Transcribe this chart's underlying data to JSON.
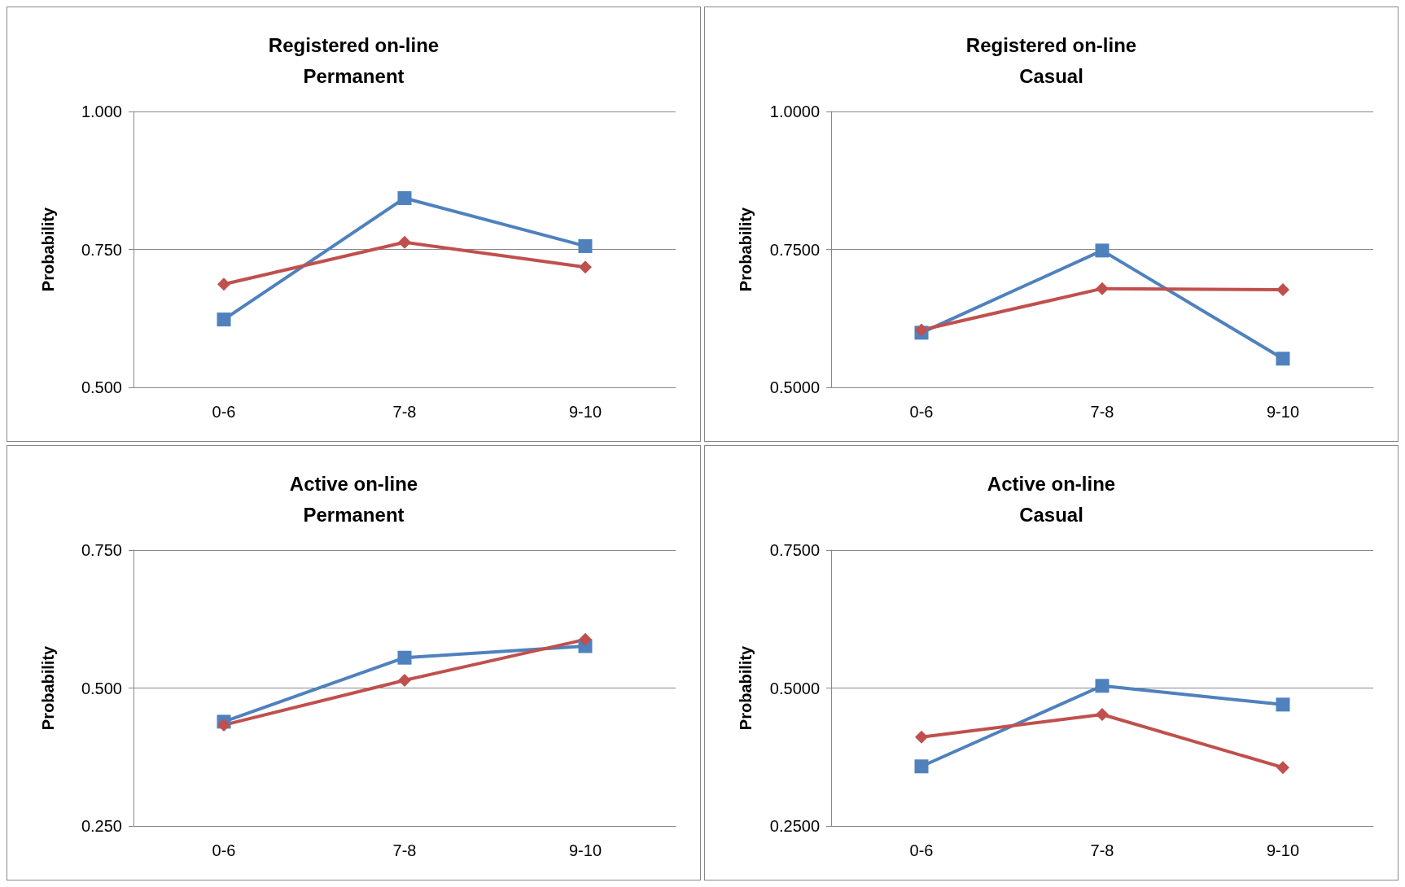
{
  "chart_data": [
    {
      "type": "line",
      "title": "Registered on-line\nPermanent",
      "ylabel": "Probability",
      "categories": [
        "0-6",
        "7-8",
        "9-10"
      ],
      "ylim": [
        0.5,
        1.0
      ],
      "yticks": [
        {
          "value": 0.5,
          "label": "0.500"
        },
        {
          "value": 0.75,
          "label": "0.750"
        },
        {
          "value": 1.0,
          "label": "1.000"
        }
      ],
      "grid": "y",
      "series": [
        {
          "color": "#4f81bd",
          "marker": "square",
          "values": [
            0.623,
            0.843,
            0.756
          ]
        },
        {
          "color": "#c0504d",
          "marker": "diamond",
          "values": [
            0.687,
            0.763,
            0.718
          ]
        }
      ]
    },
    {
      "type": "line",
      "title": "Registered on-line\nCasual",
      "ylabel": "Probability",
      "categories": [
        "0-6",
        "7-8",
        "9-10"
      ],
      "ylim": [
        0.5,
        1.0
      ],
      "yticks": [
        {
          "value": 0.5,
          "label": "0.5000"
        },
        {
          "value": 0.75,
          "label": "0.7500"
        },
        {
          "value": 1.0,
          "label": "1.0000"
        }
      ],
      "grid": "y",
      "series": [
        {
          "color": "#4f81bd",
          "marker": "square",
          "values": [
            0.599,
            0.748,
            0.552
          ]
        },
        {
          "color": "#c0504d",
          "marker": "diamond",
          "values": [
            0.604,
            0.679,
            0.677
          ]
        }
      ]
    },
    {
      "type": "line",
      "title": "Active on-line\nPermanent",
      "ylabel": "Probability",
      "categories": [
        "0-6",
        "7-8",
        "9-10"
      ],
      "ylim": [
        0.25,
        0.75
      ],
      "yticks": [
        {
          "value": 0.25,
          "label": "0.250"
        },
        {
          "value": 0.5,
          "label": "0.500"
        },
        {
          "value": 0.75,
          "label": "0.750"
        }
      ],
      "grid": "y",
      "series": [
        {
          "color": "#4f81bd",
          "marker": "square",
          "values": [
            0.439,
            0.555,
            0.576
          ]
        },
        {
          "color": "#c0504d",
          "marker": "diamond",
          "values": [
            0.433,
            0.514,
            0.588
          ]
        }
      ]
    },
    {
      "type": "line",
      "title": "Active on-line\nCasual",
      "ylabel": "Probability",
      "categories": [
        "0-6",
        "7-8",
        "9-10"
      ],
      "ylim": [
        0.25,
        0.75
      ],
      "yticks": [
        {
          "value": 0.25,
          "label": "0.2500"
        },
        {
          "value": 0.5,
          "label": "0.5000"
        },
        {
          "value": 0.75,
          "label": "0.7500"
        }
      ],
      "grid": "y",
      "series": [
        {
          "color": "#4f81bd",
          "marker": "square",
          "values": [
            0.358,
            0.504,
            0.47
          ]
        },
        {
          "color": "#c0504d",
          "marker": "diamond",
          "values": [
            0.411,
            0.452,
            0.356
          ]
        }
      ]
    }
  ]
}
